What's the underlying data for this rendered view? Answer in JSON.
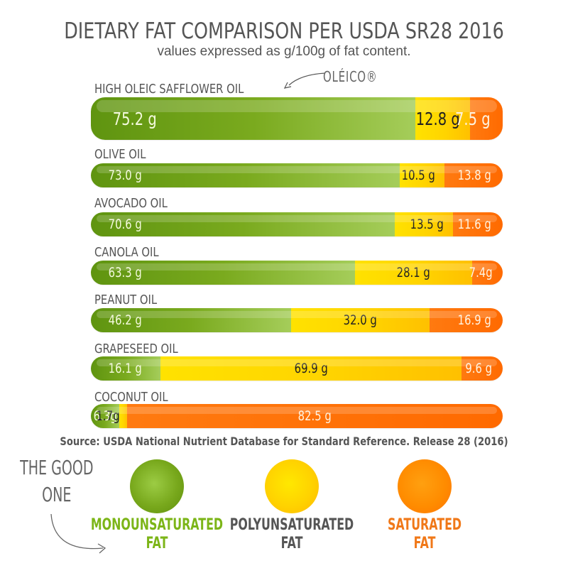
{
  "chart_data": {
    "type": "bar",
    "orientation": "horizontal",
    "stacked": true,
    "title": "DIETARY FAT COMPARISON PER USDA SR28 2016",
    "subtitle": "values expressed as g/100g of fat content.",
    "categories": [
      "HIGH OLEIC SAFFLOWER OIL",
      "OLIVE OIL",
      "AVOCADO OIL",
      "CANOLA OIL",
      "PEANUT OIL",
      "GRAPESEED OIL",
      "COCONUT OIL"
    ],
    "series": [
      {
        "name": "MONOUNSATURATED FAT",
        "color": "#7aaa1e",
        "values": [
          75.2,
          73.0,
          70.6,
          63.3,
          46.2,
          16.1,
          6.3
        ],
        "labels": [
          "75.2 g",
          "73.0 g",
          "70.6 g",
          "63.3 g",
          "46.2 g",
          "16.1 g",
          "6.3g"
        ]
      },
      {
        "name": "POLYUNSATURATED FAT",
        "color": "#ffd400",
        "values": [
          12.8,
          10.5,
          13.5,
          28.1,
          32.0,
          69.9,
          1.7
        ],
        "labels": [
          "12.8 g",
          "10.5 g",
          "13.5 g",
          "28.1 g",
          "32.0 g",
          "69.9 g",
          "1.7g"
        ]
      },
      {
        "name": "SATURATED FAT",
        "color": "#ff6a00",
        "values": [
          7.5,
          13.8,
          11.6,
          7.4,
          16.9,
          9.6,
          82.5
        ],
        "labels": [
          "7.5 g",
          "13.8 g",
          "11.6 g",
          "7.4g",
          "16.9 g",
          "9.6 g",
          "82.5 g"
        ]
      }
    ],
    "unit": "g/100g",
    "annotation": "OLÉICO®",
    "source": "Source: USDA National Nutrient Database for Standard Reference. Release 28 (2016)",
    "legend": {
      "placement": "bottom",
      "items": [
        {
          "line1": "MONOUNSATURATED",
          "line2": "FAT",
          "text_color": "#7cb518"
        },
        {
          "line1": "POLYUNSATURATED",
          "line2": "FAT",
          "text_color": "#555555"
        },
        {
          "line1": "SATURATED",
          "line2": "FAT",
          "text_color": "#f07818"
        }
      ],
      "callout_line1": "THE GOOD",
      "callout_line2": "ONE"
    }
  }
}
